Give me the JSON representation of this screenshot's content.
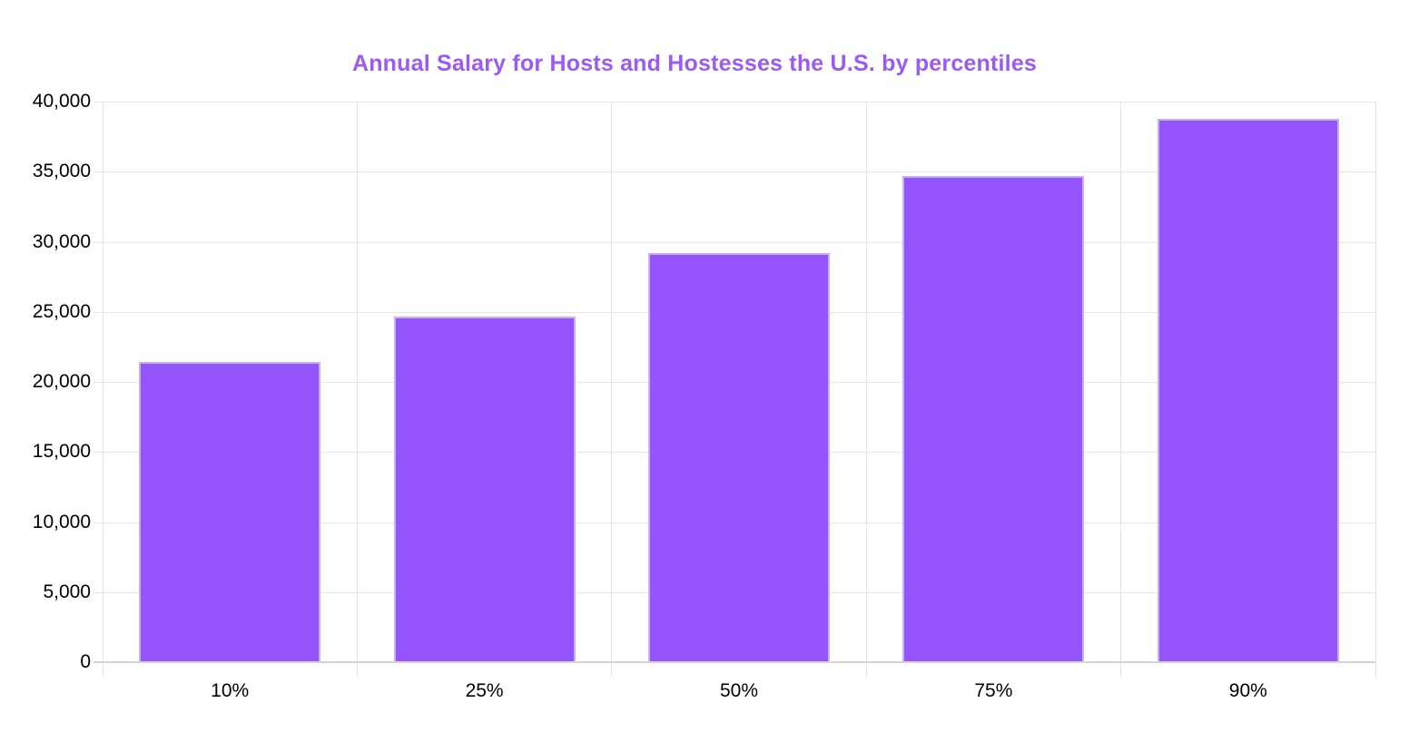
{
  "page": {
    "background": "#ffffff"
  },
  "chart": {
    "title": "Annual Salary for Hosts and Hostesses the U.S. by percentiles",
    "colors": {
      "title_text": "#9b5af3",
      "bar_fill": "#9355fb",
      "bar_border": "#cbadf2",
      "gridline": "#e6e6e6",
      "axis_line": "#d4d4d4",
      "label_text": "#000000"
    }
  },
  "chart_data": {
    "type": "bar",
    "title": "Annual Salary for Hosts and Hostesses the U.S. by percentiles",
    "categories": [
      "10%",
      "25%",
      "50%",
      "75%",
      "90%"
    ],
    "values": [
      21450,
      24650,
      29220,
      34680,
      38790
    ],
    "xlabel": "",
    "ylabel": "",
    "ylim": [
      0,
      40000
    ],
    "ytick_step": 5000,
    "ytick_labels": [
      "0",
      "5,000",
      "10,000",
      "15,000",
      "20,000",
      "25,000",
      "30,000",
      "35,000",
      "40,000"
    ],
    "grid": "horizontal gridlines at each y tick; vertical gridlines at category boundaries with ticks below axis",
    "legend_position": "none",
    "bar_width_fraction_of_category": 0.713
  }
}
